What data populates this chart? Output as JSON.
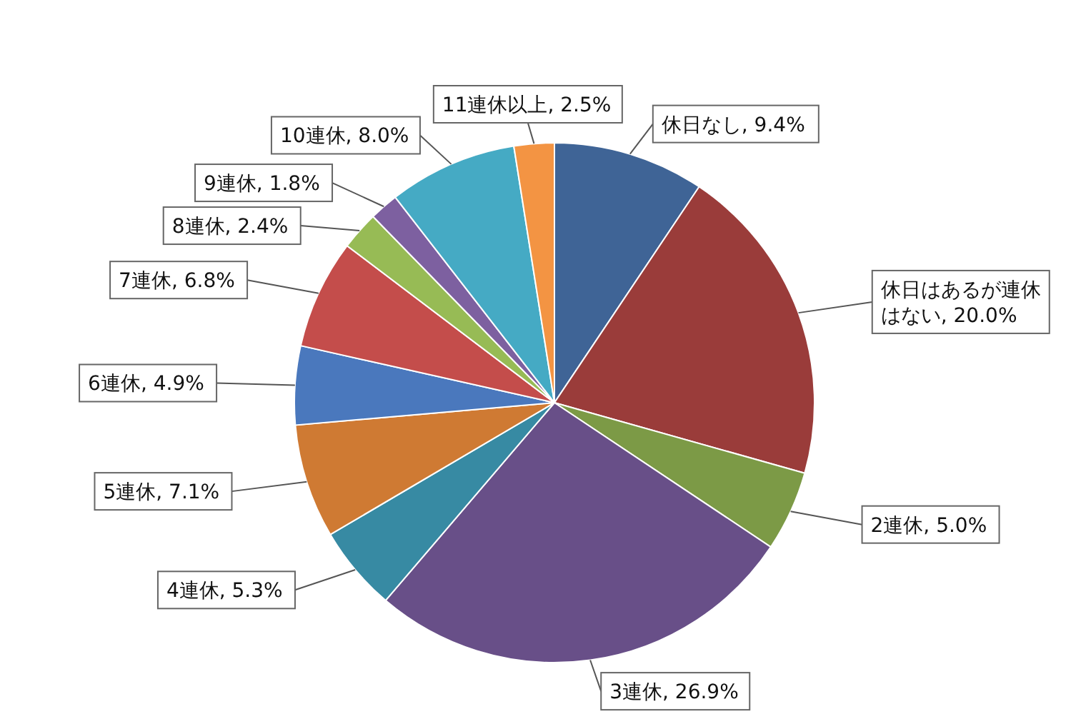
{
  "chart_data": {
    "type": "pie",
    "categories": [
      "休日なし",
      "休日はあるが連休はない",
      "2連休",
      "3連休",
      "4連休",
      "5連休",
      "6連休",
      "7連休",
      "8連休",
      "9連休",
      "10連休",
      "11連休以上"
    ],
    "values": [
      9.4,
      20.0,
      5.0,
      26.9,
      5.3,
      7.1,
      4.9,
      6.8,
      2.4,
      1.8,
      8.0,
      2.5
    ],
    "value_labels": [
      "9.4%",
      "20.0%",
      "5.0%",
      "26.9%",
      "5.3%",
      "7.1%",
      "4.9%",
      "6.8%",
      "2.4%",
      "1.8%",
      "8.0%",
      "2.5%"
    ],
    "colors": [
      "#3f6496",
      "#9a3c3a",
      "#7c9a46",
      "#684f88",
      "#378aa3",
      "#cf7a33",
      "#4a78bd",
      "#c44d4b",
      "#97bb55",
      "#7d60a0",
      "#45aac4",
      "#f39443"
    ],
    "legend": false
  }
}
